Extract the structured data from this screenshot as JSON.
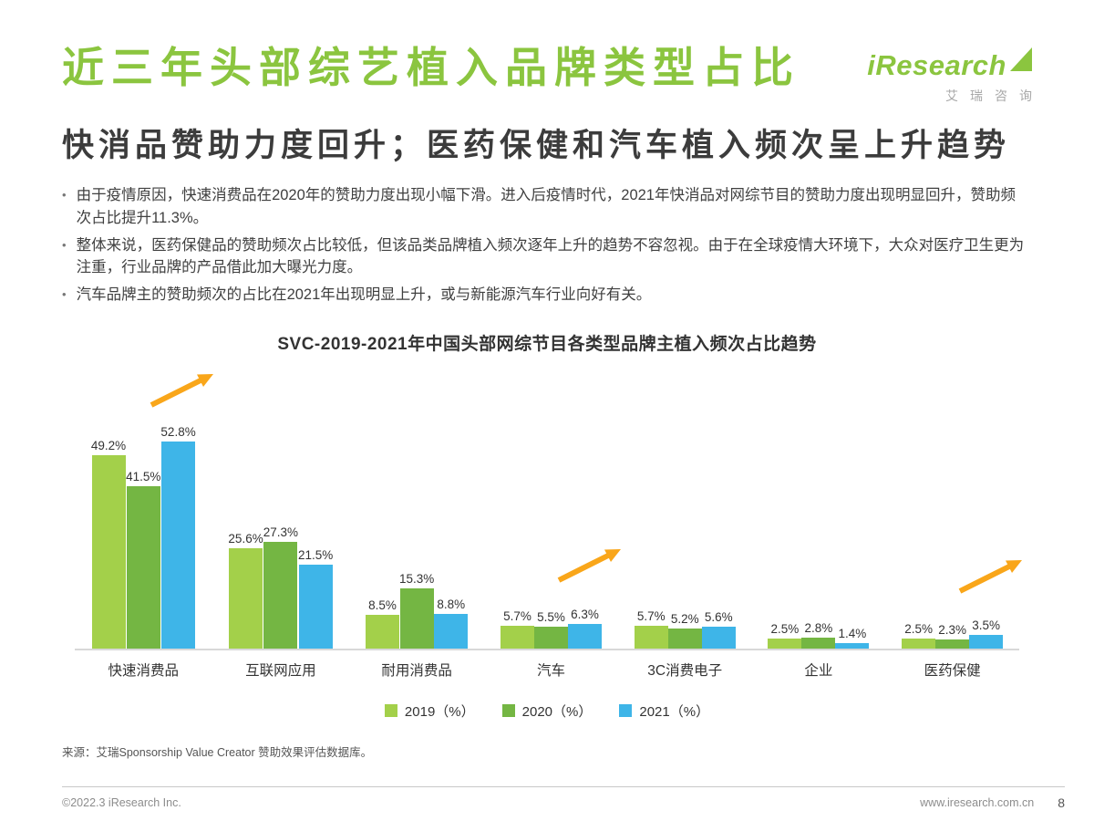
{
  "logo": {
    "brand": "iResearch",
    "sub": "艾瑞咨询"
  },
  "header": {
    "title": "近三年头部综艺植入品牌类型占比",
    "subtitle": "快消品赞助力度回升；医药保健和汽车植入频次呈上升趋势"
  },
  "bullets": [
    "由于疫情原因，快速消费品在2020年的赞助力度出现小幅下滑。进入后疫情时代，2021年快消品对网综节目的赞助力度出现明显回升，赞助频次占比提升11.3%。",
    "整体来说，医药保健品的赞助频次占比较低，但该品类品牌植入频次逐年上升的趋势不容忽视。由于在全球疫情大环境下，大众对医疗卫生更为注重，行业品牌的产品借此加大曝光力度。",
    "汽车品牌主的赞助频次的占比在2021年出现明显上升，或与新能源汽车行业向好有关。"
  ],
  "chart_data": {
    "type": "bar",
    "title": "SVC-2019-2021年中国头部网综节目各类型品牌主植入频次占比趋势",
    "categories": [
      "快速消费品",
      "互联网应用",
      "耐用消费品",
      "汽车",
      "3C消费电子",
      "企业",
      "医药保健"
    ],
    "series": [
      {
        "name": "2019（%）",
        "color": "#a3d04a",
        "values": [
          49.2,
          25.6,
          8.5,
          5.7,
          5.7,
          2.5,
          2.5
        ]
      },
      {
        "name": "2020（%）",
        "color": "#74b643",
        "values": [
          41.5,
          27.3,
          15.3,
          5.5,
          5.2,
          2.8,
          2.3
        ]
      },
      {
        "name": "2021（%）",
        "color": "#3eb5e8",
        "values": [
          52.8,
          21.5,
          8.8,
          6.3,
          5.6,
          1.4,
          3.5
        ]
      }
    ],
    "unit": "%",
    "ylim": [
      0,
      55
    ],
    "grid": false,
    "legend_position": "bottom",
    "arrow_color": "#f9a61a",
    "arrow_category_indexes": [
      0,
      3,
      6
    ]
  },
  "source": "来源：艾瑞Sponsorship Value Creator 赞助效果评估数据库。",
  "footer": {
    "copyright": "©2022.3 iResearch Inc.",
    "website": "www.iresearch.com.cn",
    "page": "8"
  }
}
